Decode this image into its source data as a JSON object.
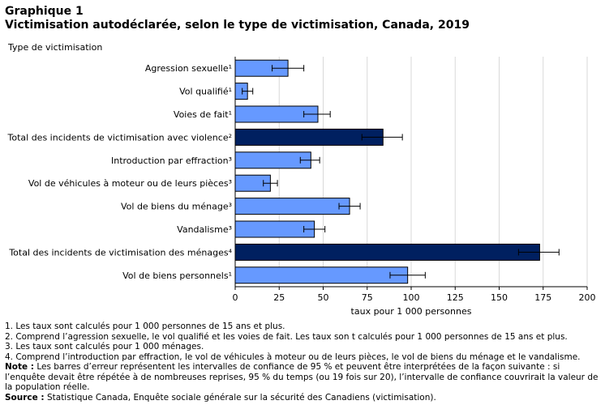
{
  "title_line1": "Graphique 1",
  "title_line2": "Victimisation autodéclarée, selon le type de victimisation, Canada, 2019",
  "colors": {
    "light_bar": "#6699ff",
    "dark_bar": "#002060",
    "grid": "#d9d9d9"
  },
  "chart_data": {
    "type": "bar",
    "orientation": "horizontal",
    "title": "Victimisation autodéclarée, selon le type de victimisation, Canada, 2019",
    "ylabel": "Type de victimisation",
    "xlabel": "taux pour 1 000 personnes",
    "xlim": [
      0,
      200
    ],
    "xticks": [
      0,
      25,
      50,
      75,
      100,
      125,
      150,
      175,
      200
    ],
    "grid": true,
    "categories": [
      "Agression sexuelle¹",
      "Vol qualifié¹",
      "Voies de fait¹",
      "Total des incidents de victimisation avec violence²",
      "Introduction par effraction³",
      "Vol de véhicules à moteur ou de leurs pièces³",
      "Vol de biens du ménage³",
      "Vandalisme³",
      "Total des incidents de victimisation des ménages⁴",
      "Vol de biens personnels¹"
    ],
    "values": [
      30,
      7,
      47,
      84,
      43,
      20,
      65,
      45,
      173,
      98
    ],
    "error_low": [
      21,
      4,
      39,
      72,
      37,
      16,
      59,
      39,
      161,
      88
    ],
    "error_high": [
      39,
      10,
      54,
      95,
      48,
      24,
      71,
      51,
      184,
      108
    ],
    "highlight": [
      false,
      false,
      false,
      true,
      false,
      false,
      false,
      false,
      true,
      false
    ]
  },
  "notes": {
    "n1": "1. Les taux sont calculés pour 1 000 personnes de 15 ans et plus.",
    "n2": "2. Comprend l’agression sexuelle, le vol qualifié et les voies de fait. Les taux son t calculés pour 1 000 personnes de 15 ans et plus.",
    "n3": "3. Les taux sont calculés pour 1 000 ménages.",
    "n4": "4. Comprend l’introduction par effraction, le vol de véhicules à moteur ou de leurs pièces, le vol de biens du ménage et le vandalisme.",
    "note_label": "Note :",
    "note_text": " Les barres d’erreur représentent les intervalles de confiance de 95 % et peuvent être interprétées de la façon suivante : si l’enquête devait être répétée à de nombreuses reprises, 95 % du temps (ou 19 fois sur 20), l’intervalle de confiance couvrirait la valeur de la population réelle.",
    "source_label": "Source :",
    "source_text": " Statistique Canada, Enquête sociale générale sur la sécurité des Canadiens (victimisation)."
  }
}
